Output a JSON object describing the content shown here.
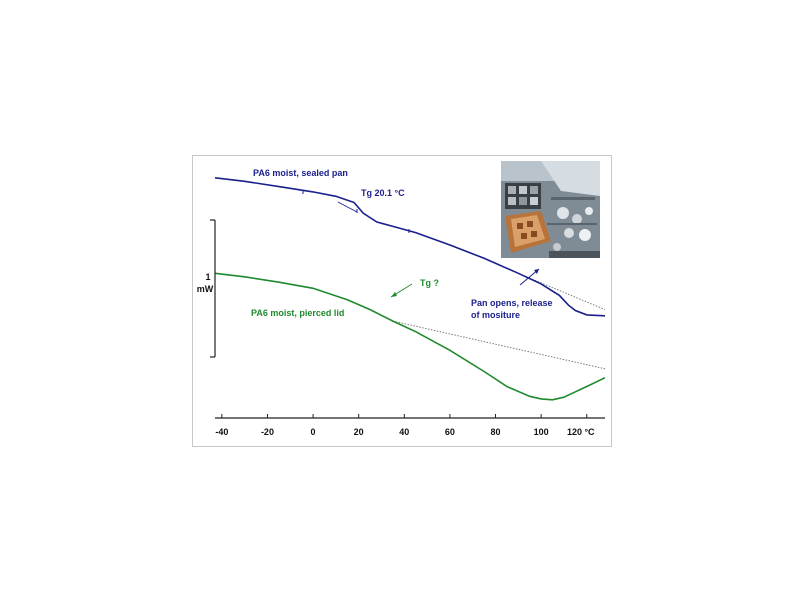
{
  "chart_data": {
    "type": "line",
    "title": "",
    "xlabel": "",
    "ylabel": "",
    "x_unit": "°C",
    "xlim": [
      -43,
      128
    ],
    "x_ticks": [
      {
        "value": -40,
        "label": "-40"
      },
      {
        "value": -20,
        "label": "-20"
      },
      {
        "value": 0,
        "label": "0"
      },
      {
        "value": 20,
        "label": "20"
      },
      {
        "value": 40,
        "label": "40"
      },
      {
        "value": 60,
        "label": "60"
      },
      {
        "value": 80,
        "label": "80"
      },
      {
        "value": 100,
        "label": "100"
      },
      {
        "value": 120,
        "label": "120 °C"
      }
    ],
    "scale_bar": {
      "line1": "1",
      "line2": "mW"
    },
    "grid": false,
    "legend": "none",
    "series": [
      {
        "name": "PA6 moist, sealed pan",
        "color": "#1a1f8c",
        "x": [
          -43,
          -30,
          -15,
          0,
          10,
          18,
          22,
          28,
          35,
          45,
          60,
          75,
          90,
          100,
          108,
          112,
          115,
          120,
          128
        ],
        "y": [
          24.8,
          24.4,
          23.8,
          23.2,
          22.7,
          22.0,
          20.8,
          19.8,
          19.3,
          18.6,
          17.2,
          15.7,
          14.0,
          12.8,
          11.5,
          10.4,
          9.8,
          9.3,
          9.2
        ]
      },
      {
        "name": "PA6 moist, pierced lid",
        "color": "#1f8a2e",
        "x": [
          -43,
          -30,
          -15,
          0,
          15,
          25,
          35,
          45,
          60,
          75,
          85,
          95,
          100,
          105,
          110,
          115,
          120,
          128
        ],
        "y": [
          14.0,
          13.6,
          13.0,
          12.3,
          11.0,
          9.9,
          8.6,
          7.4,
          5.3,
          2.9,
          1.2,
          0.1,
          -0.2,
          -0.3,
          0.0,
          0.6,
          1.2,
          2.2
        ]
      }
    ],
    "baselines": [
      {
        "series": "PA6 moist, sealed pan",
        "x": [
          90,
          128
        ],
        "y": [
          14.0,
          9.9
        ]
      },
      {
        "series": "PA6 moist, pierced lid",
        "x": [
          35,
          128
        ],
        "y": [
          8.6,
          3.2
        ]
      }
    ],
    "annotations": [
      {
        "text": "PA6 moist, sealed pan",
        "color": "#1a1f8c"
      },
      {
        "text": "Tg  20.1 °C",
        "color": "#1a1f8c"
      },
      {
        "text": "Tg ?",
        "color": "#1f8a2e"
      },
      {
        "text": "PA6 moist, pierced lid",
        "color": "#1f8a2e"
      },
      {
        "text": "Pan opens, release",
        "color": "#1a1f8c"
      },
      {
        "text": "of mositure",
        "color": "#1a1f8c"
      }
    ]
  },
  "photo": {
    "subject": "laboratory-sample-robot-photo"
  }
}
